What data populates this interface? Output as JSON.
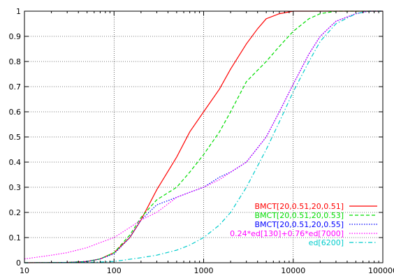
{
  "chart_data": {
    "type": "line",
    "title": "",
    "xlabel": "",
    "ylabel": "",
    "xscale": "log",
    "xlim": [
      10,
      100000
    ],
    "ylim": [
      0,
      1
    ],
    "grid": true,
    "legend_position": "bottom-right",
    "x_ticks": [
      "10",
      "100",
      "1000",
      "10000",
      "100000"
    ],
    "y_ticks": [
      "0",
      "0.1",
      "0.2",
      "0.3",
      "0.4",
      "0.5",
      "0.6",
      "0.7",
      "0.8",
      "0.9",
      "1"
    ],
    "series": [
      {
        "name": "BMCT[20,0.51,20,0.51]",
        "color": "#ff0000",
        "dash": "solid",
        "x": [
          10,
          30,
          50,
          70,
          100,
          150,
          200,
          300,
          500,
          700,
          1000,
          1500,
          2000,
          3000,
          4000,
          5000,
          7000,
          10000,
          15000,
          20000,
          100000
        ],
        "y": [
          0,
          0.001,
          0.005,
          0.015,
          0.04,
          0.1,
          0.17,
          0.29,
          0.42,
          0.52,
          0.6,
          0.69,
          0.77,
          0.87,
          0.93,
          0.97,
          0.99,
          1.0,
          1.0,
          1.0,
          1.0
        ]
      },
      {
        "name": "BMCT[20,0.51,20,0.53]",
        "color": "#00dd00",
        "dash": "dashed",
        "x": [
          10,
          30,
          50,
          70,
          100,
          150,
          200,
          300,
          500,
          700,
          1000,
          1500,
          2000,
          3000,
          5000,
          7000,
          10000,
          15000,
          20000,
          30000,
          100000
        ],
        "y": [
          0,
          0.001,
          0.005,
          0.015,
          0.04,
          0.11,
          0.18,
          0.25,
          0.3,
          0.36,
          0.43,
          0.52,
          0.6,
          0.72,
          0.8,
          0.86,
          0.92,
          0.97,
          0.99,
          1.0,
          1.0
        ]
      },
      {
        "name": "BMCT[20,0.51,20,0.55]",
        "color": "#0000ff",
        "dash": "dotted",
        "x": [
          10,
          30,
          50,
          70,
          100,
          150,
          200,
          300,
          500,
          700,
          1000,
          1500,
          2000,
          3000,
          5000,
          7000,
          10000,
          15000,
          20000,
          30000,
          50000,
          70000,
          100000
        ],
        "y": [
          0,
          0.001,
          0.005,
          0.015,
          0.035,
          0.1,
          0.17,
          0.23,
          0.26,
          0.28,
          0.3,
          0.34,
          0.36,
          0.4,
          0.5,
          0.6,
          0.71,
          0.83,
          0.9,
          0.96,
          0.99,
          1.0,
          1.0
        ]
      },
      {
        "name": "0.24*ed[130]+0.76*ed[7000]",
        "color": "#ff00ff",
        "dash": "dotted",
        "x": [
          10,
          20,
          30,
          50,
          70,
          100,
          150,
          200,
          300,
          500,
          700,
          1000,
          1500,
          2000,
          3000,
          5000,
          7000,
          10000,
          15000,
          20000,
          30000,
          50000,
          70000,
          100000
        ],
        "y": [
          0.015,
          0.03,
          0.04,
          0.06,
          0.08,
          0.1,
          0.14,
          0.17,
          0.2,
          0.26,
          0.28,
          0.3,
          0.33,
          0.36,
          0.4,
          0.5,
          0.6,
          0.71,
          0.83,
          0.9,
          0.96,
          0.99,
          1.0,
          1.0
        ]
      },
      {
        "name": "ed[6200]",
        "color": "#00cccc",
        "dash": "dashdot",
        "x": [
          10,
          50,
          100,
          200,
          300,
          500,
          700,
          1000,
          1500,
          2000,
          3000,
          5000,
          7000,
          10000,
          15000,
          20000,
          30000,
          50000,
          70000,
          100000
        ],
        "y": [
          0,
          0.001,
          0.005,
          0.02,
          0.03,
          0.05,
          0.07,
          0.1,
          0.15,
          0.2,
          0.3,
          0.45,
          0.56,
          0.68,
          0.8,
          0.88,
          0.95,
          0.99,
          1.0,
          1.0
        ]
      }
    ]
  }
}
